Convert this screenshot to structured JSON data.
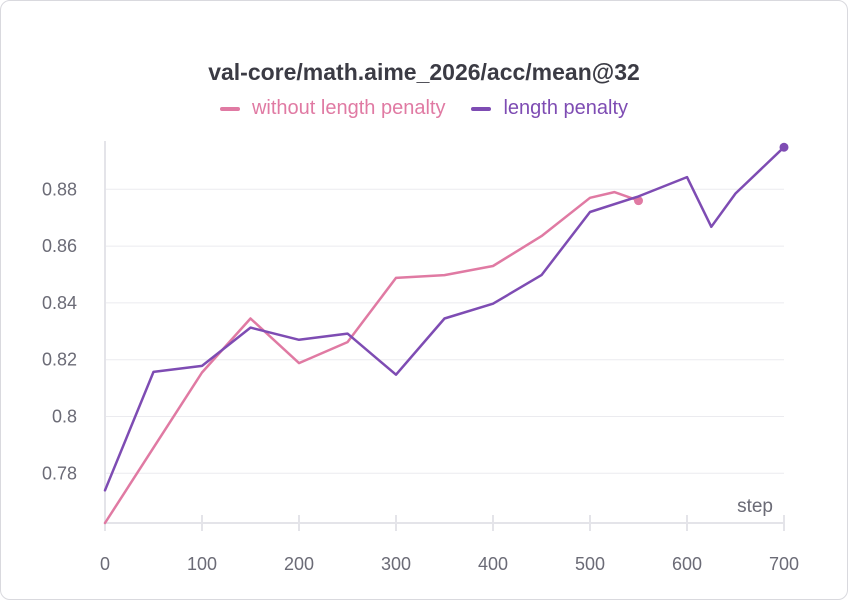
{
  "chart_data": {
    "type": "line",
    "title": "val-core/math.aime_2026/acc/mean@32",
    "xlabel": "step",
    "ylabel": "",
    "xlim": [
      0,
      700
    ],
    "ylim": [
      0.7625,
      0.897
    ],
    "x_ticks": [
      0,
      100,
      200,
      300,
      400,
      500,
      600,
      700
    ],
    "y_ticks": [
      0.78,
      0.8,
      0.82,
      0.84,
      0.86,
      0.88
    ],
    "y_tick_labels": [
      "0.78",
      "0.8",
      "0.82",
      "0.84",
      "0.86",
      "0.88"
    ],
    "grid": "horizontal",
    "legend_position": "top-center",
    "series": [
      {
        "name": "without length penalty",
        "color": "#e07aa3",
        "x": [
          0,
          50,
          100,
          150,
          200,
          250,
          300,
          350,
          400,
          450,
          500,
          525,
          550
        ],
        "y": [
          0.7625,
          0.789,
          0.8155,
          0.8345,
          0.8188,
          0.8262,
          0.8488,
          0.8498,
          0.853,
          0.8635,
          0.877,
          0.879,
          0.876
        ],
        "end_marker": true
      },
      {
        "name": "length penalty",
        "color": "#7e4cb3",
        "x": [
          0,
          50,
          100,
          150,
          200,
          250,
          300,
          350,
          400,
          450,
          500,
          550,
          600,
          625,
          650,
          700
        ],
        "y": [
          0.774,
          0.8157,
          0.8178,
          0.8313,
          0.827,
          0.8292,
          0.8147,
          0.8345,
          0.8397,
          0.8498,
          0.872,
          0.8775,
          0.8843,
          0.8668,
          0.8785,
          0.8948
        ],
        "end_marker": true
      }
    ]
  }
}
